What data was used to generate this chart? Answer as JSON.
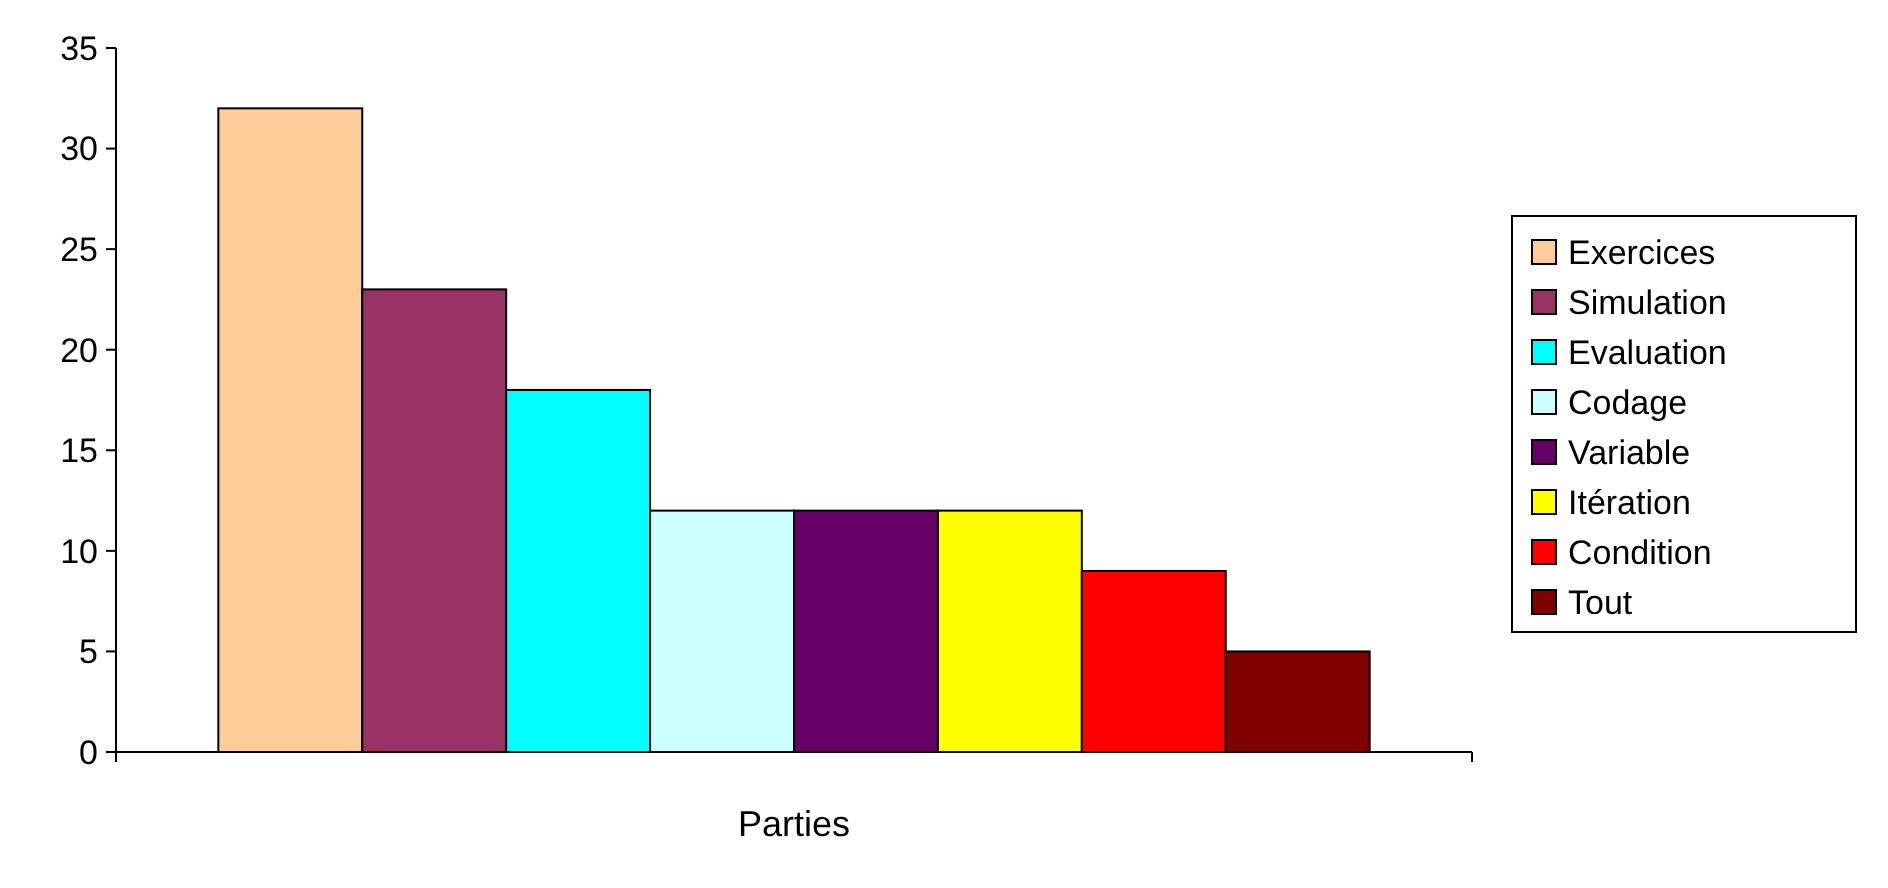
{
  "chart_data": {
    "type": "bar",
    "xlabel": "Parties",
    "categories": [
      null
    ],
    "series": [
      {
        "name": "Exercices",
        "color": "#ffcc99",
        "values": [
          32
        ]
      },
      {
        "name": "Simulation",
        "color": "#993366",
        "values": [
          23
        ]
      },
      {
        "name": "Evaluation",
        "color": "#00ffff",
        "values": [
          18
        ]
      },
      {
        "name": "Codage",
        "color": "#ccffff",
        "values": [
          12
        ]
      },
      {
        "name": "Variable",
        "color": "#660066",
        "values": [
          12
        ]
      },
      {
        "name": "Itération",
        "color": "#ffff00",
        "values": [
          12
        ]
      },
      {
        "name": "Condition",
        "color": "#ff0000",
        "values": [
          9
        ]
      },
      {
        "name": "Tout",
        "color": "#800000",
        "values": [
          5
        ]
      }
    ],
    "ylim": [
      0,
      35
    ],
    "yticks": [
      0,
      5,
      10,
      15,
      20,
      25,
      30,
      35
    ],
    "grid": false,
    "legend": "right"
  }
}
